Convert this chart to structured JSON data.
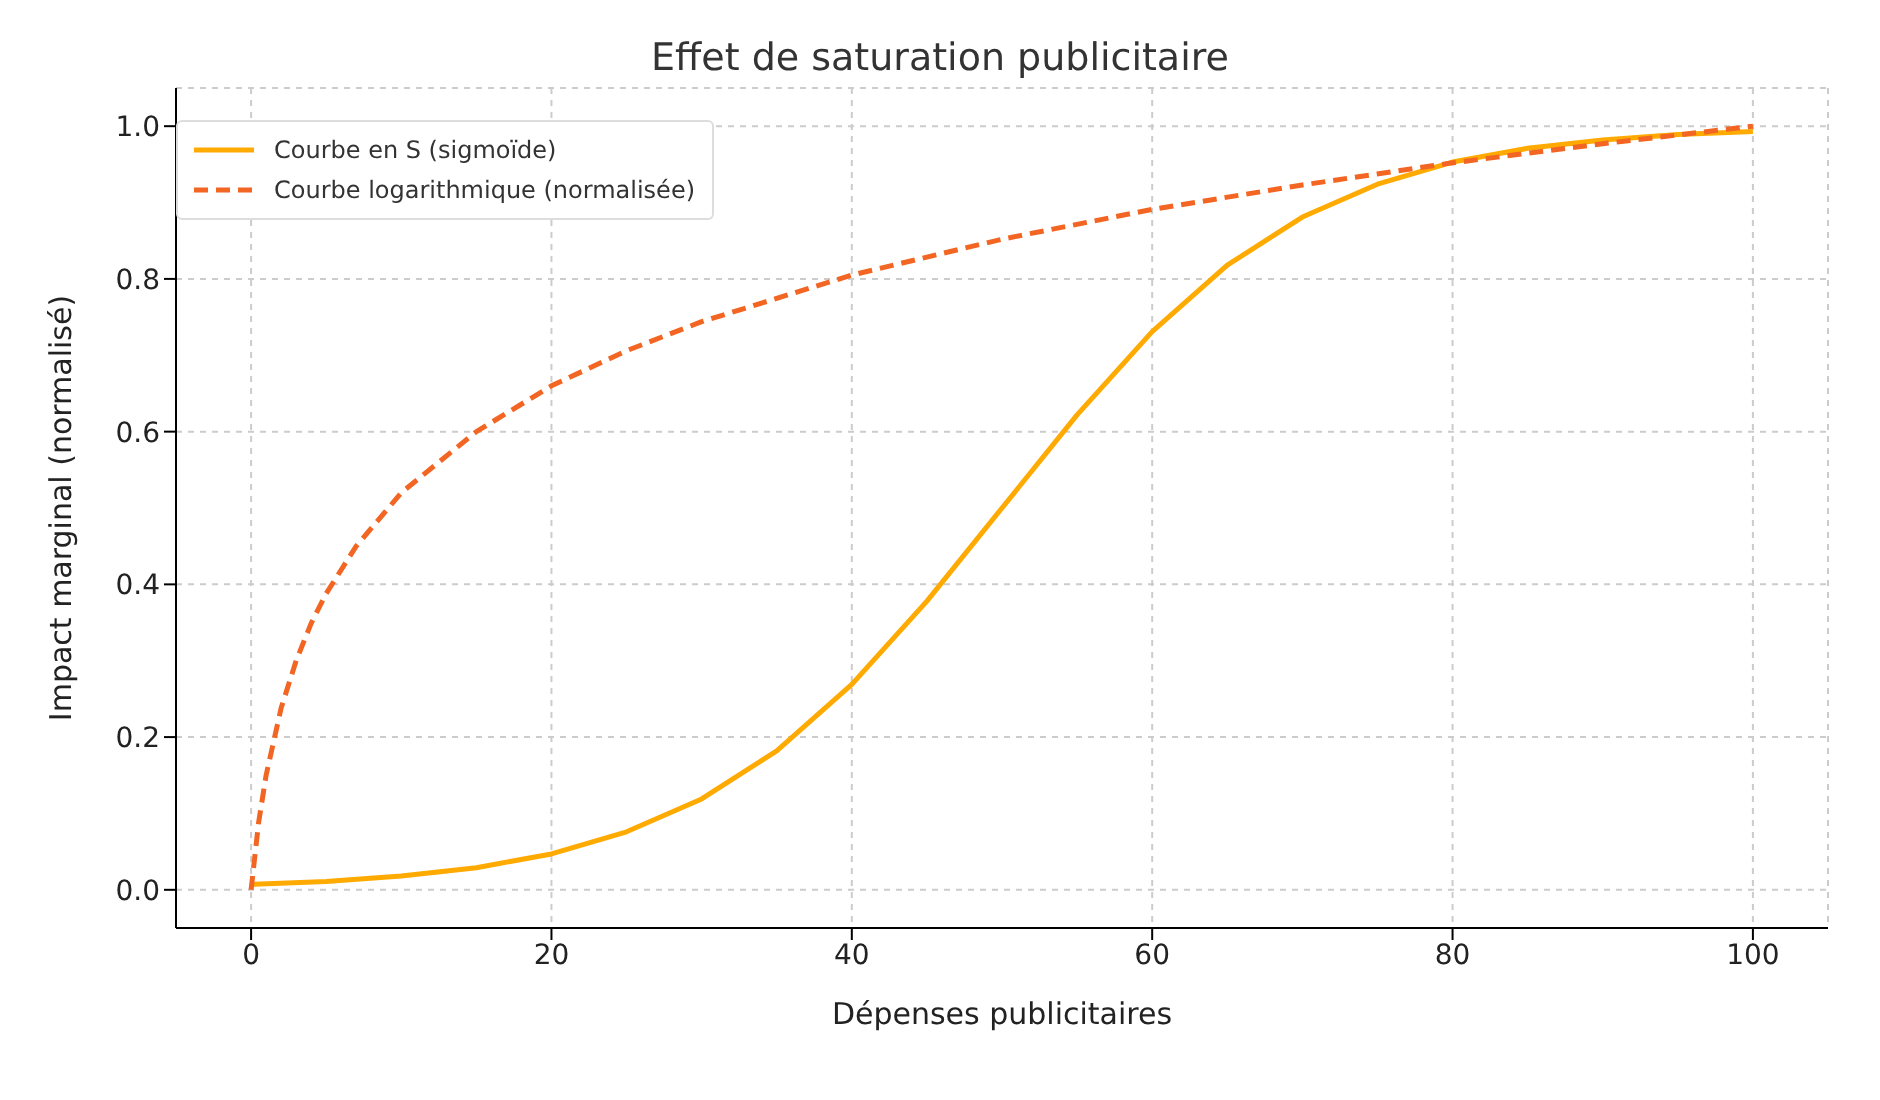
{
  "chart_data": {
    "type": "line",
    "title": "Effet de saturation publicitaire",
    "xlabel": "Dépenses publicitaires",
    "ylabel": "Impact marginal (normalisé)",
    "xlim": [
      -5,
      105
    ],
    "xticks": [
      0,
      20,
      40,
      60,
      80,
      100
    ],
    "ylim": [
      -0.05,
      1.05
    ],
    "yticks": [
      {
        "value": 0,
        "label": "0.0"
      },
      0.2,
      0.4,
      0.6,
      0.8,
      {
        "value": 1,
        "label": "1.0"
      }
    ],
    "grid": true,
    "legend": "top left",
    "marker": "none",
    "series": [
      {
        "name": "Courbe en S (sigmoïde)",
        "color": "#ffaa00",
        "line_style": "solid",
        "x": [
          0,
          5,
          10,
          15,
          20,
          25,
          30,
          35,
          40,
          45,
          50,
          55,
          60,
          65,
          70,
          75,
          80,
          85,
          90,
          95,
          100
        ],
        "values": [
          0.007,
          0.011,
          0.018,
          0.029,
          0.047,
          0.076,
          0.119,
          0.182,
          0.269,
          0.378,
          0.5,
          0.622,
          0.731,
          0.818,
          0.881,
          0.924,
          0.953,
          0.971,
          0.982,
          0.989,
          0.993
        ]
      },
      {
        "name": "Courbe logarithmique (normalisée)",
        "color": "#f26522",
        "line_style": "dashed",
        "x": [
          0,
          0.5,
          1,
          2,
          3,
          4,
          5,
          7,
          10,
          15,
          20,
          25,
          30,
          40,
          50,
          60,
          70,
          80,
          90,
          100
        ],
        "values": [
          0,
          0.088,
          0.15,
          0.238,
          0.3,
          0.349,
          0.388,
          0.45,
          0.52,
          0.6,
          0.66,
          0.706,
          0.744,
          0.805,
          0.852,
          0.891,
          0.923,
          0.952,
          0.977,
          1.0
        ]
      }
    ]
  }
}
